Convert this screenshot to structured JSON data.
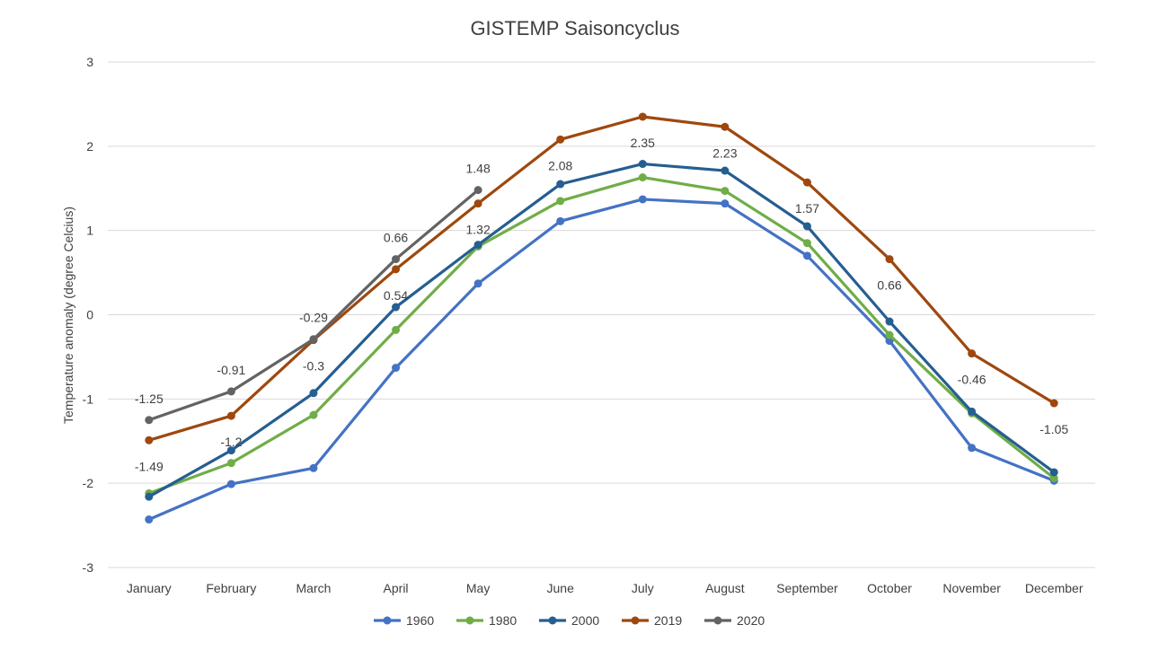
{
  "chart_data": {
    "type": "line",
    "title": "GISTEMP Saisoncyclus",
    "ylabel": "Temperature anomaly (degree Celcius)",
    "xlabel": "",
    "ylim": [
      -3,
      3
    ],
    "yticks": [
      "-3",
      "-2",
      "-1",
      "0",
      "1",
      "2",
      "3"
    ],
    "grid": true,
    "legend_position": "bottom",
    "categories": [
      "January",
      "February",
      "March",
      "April",
      "May",
      "June",
      "July",
      "August",
      "September",
      "October",
      "November",
      "December"
    ],
    "series": [
      {
        "name": "1960",
        "color": "#4472c4",
        "values": [
          -2.43,
          -2.01,
          -1.82,
          -0.63,
          0.37,
          1.11,
          1.37,
          1.32,
          0.7,
          -0.31,
          -1.58,
          -1.97
        ]
      },
      {
        "name": "1980",
        "color": "#70ad47",
        "values": [
          -2.12,
          -1.76,
          -1.19,
          -0.18,
          0.81,
          1.35,
          1.63,
          1.47,
          0.85,
          -0.24,
          -1.17,
          -1.94
        ]
      },
      {
        "name": "2000",
        "color": "#255e91",
        "values": [
          -2.16,
          -1.61,
          -0.93,
          0.09,
          0.83,
          1.55,
          1.79,
          1.71,
          1.05,
          -0.08,
          -1.15,
          -1.87
        ]
      },
      {
        "name": "2019",
        "color": "#9e480e",
        "values": [
          -1.49,
          -1.2,
          -0.3,
          0.54,
          1.32,
          2.08,
          2.35,
          2.23,
          1.57,
          0.66,
          -0.46,
          -1.05
        ]
      },
      {
        "name": "2020",
        "color": "#636363",
        "values": [
          -1.25,
          -0.91,
          -0.29,
          0.66,
          1.48,
          null,
          null,
          null,
          null,
          null,
          null,
          null
        ]
      }
    ],
    "annotations": [
      {
        "series": "2019",
        "index": 0,
        "text": "-1.49",
        "pos": "below"
      },
      {
        "series": "2019",
        "index": 1,
        "text": "-1.2",
        "pos": "below"
      },
      {
        "series": "2019",
        "index": 2,
        "text": "-0.3",
        "pos": "below"
      },
      {
        "series": "2019",
        "index": 3,
        "text": "0.54",
        "pos": "below"
      },
      {
        "series": "2019",
        "index": 4,
        "text": "1.32",
        "pos": "below"
      },
      {
        "series": "2019",
        "index": 5,
        "text": "2.08",
        "pos": "below"
      },
      {
        "series": "2019",
        "index": 6,
        "text": "2.35",
        "pos": "below"
      },
      {
        "series": "2019",
        "index": 7,
        "text": "2.23",
        "pos": "below"
      },
      {
        "series": "2019",
        "index": 8,
        "text": "1.57",
        "pos": "below"
      },
      {
        "series": "2019",
        "index": 9,
        "text": "0.66",
        "pos": "below"
      },
      {
        "series": "2019",
        "index": 10,
        "text": "-0.46",
        "pos": "below"
      },
      {
        "series": "2019",
        "index": 11,
        "text": "-1.05",
        "pos": "below"
      },
      {
        "series": "2020",
        "index": 0,
        "text": "-1.25",
        "pos": "above"
      },
      {
        "series": "2020",
        "index": 1,
        "text": "-0.91",
        "pos": "above"
      },
      {
        "series": "2020",
        "index": 2,
        "text": "-0.29",
        "pos": "above"
      },
      {
        "series": "2020",
        "index": 3,
        "text": "0.66",
        "pos": "above"
      },
      {
        "series": "2020",
        "index": 4,
        "text": "1.48",
        "pos": "above"
      }
    ]
  }
}
